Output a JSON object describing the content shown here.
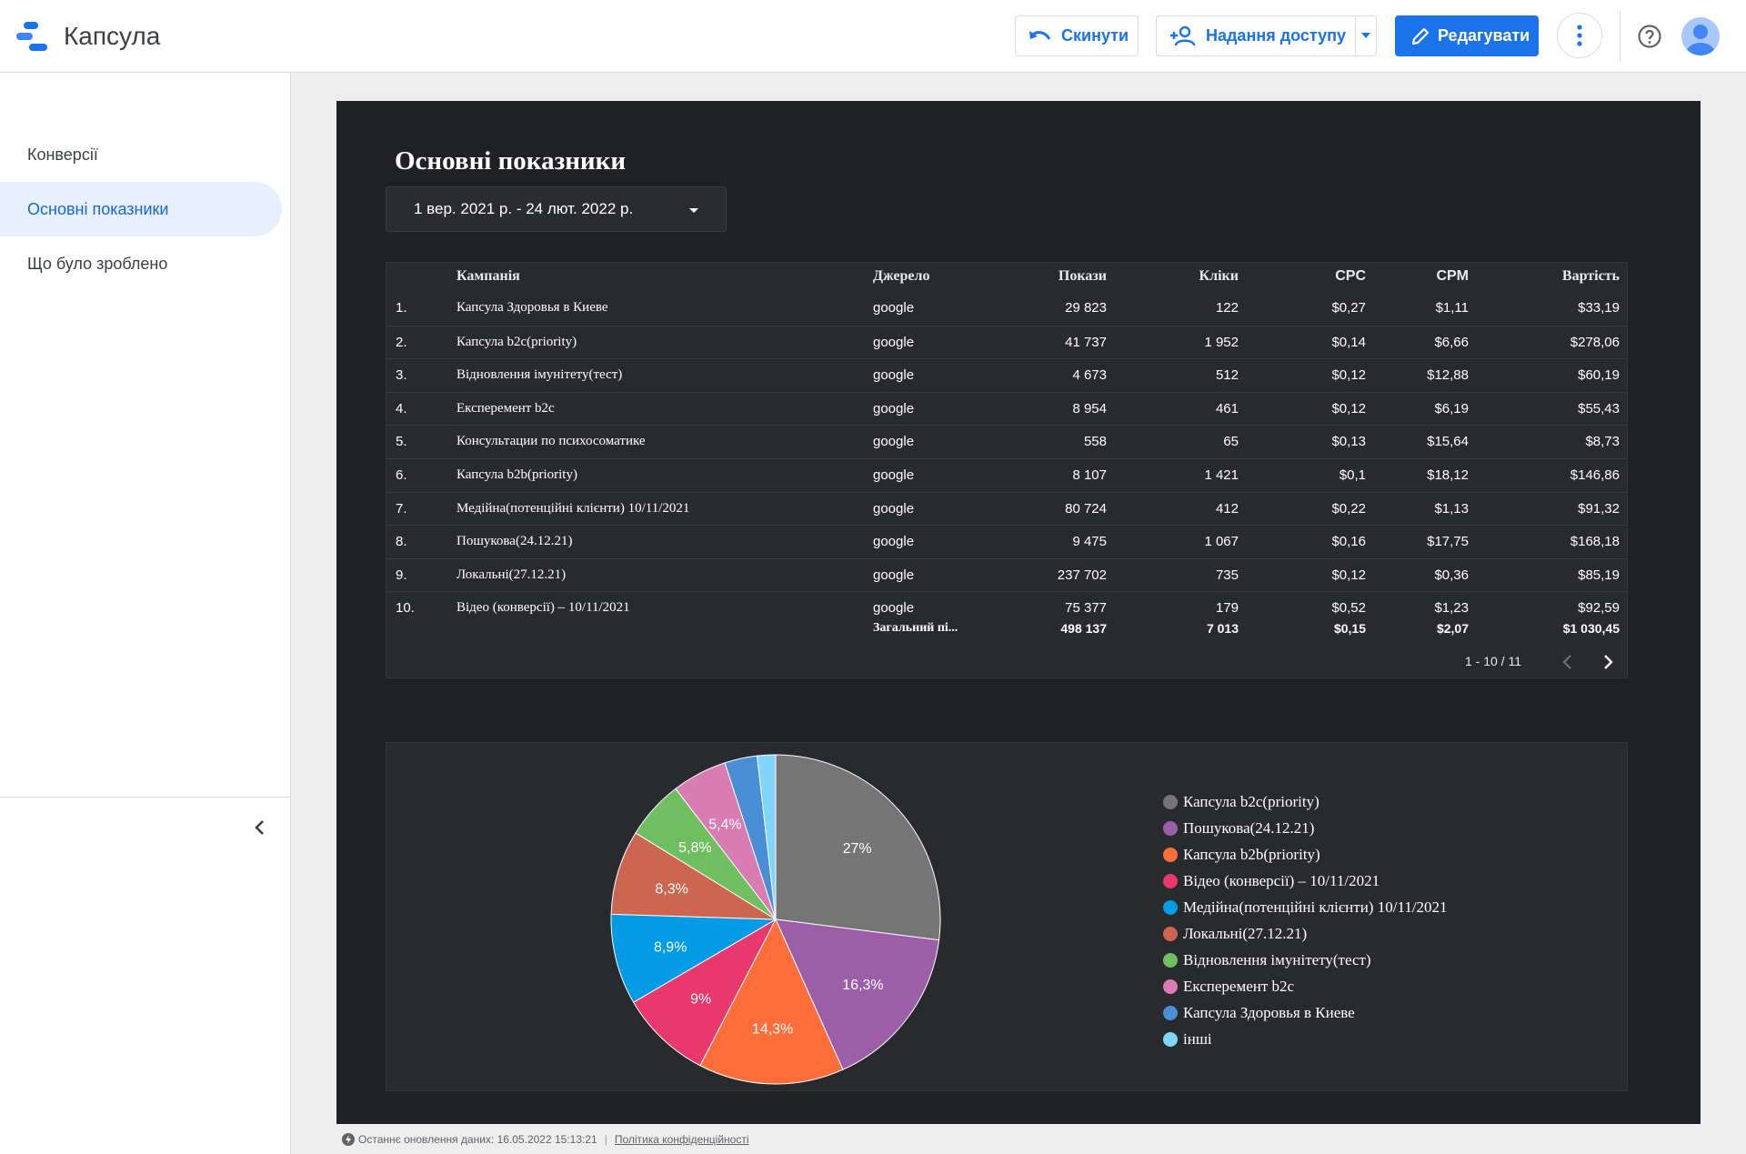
{
  "app": {
    "title": "Капсула"
  },
  "toolbar": {
    "reset_label": "Скинути",
    "share_label": "Надання доступу",
    "edit_label": "Редагувати"
  },
  "sidebar": {
    "items": [
      {
        "label": "Конверсії"
      },
      {
        "label": "Основні показники"
      },
      {
        "label": "Що було зроблено"
      }
    ]
  },
  "report": {
    "title": "Основні показники",
    "date_range": "1 вер. 2021 р. - 24 лют. 2022 р."
  },
  "table": {
    "headers": [
      "Кампанія",
      "Джерело",
      "Покази",
      "Кліки",
      "CPC",
      "CPM",
      "Вартість"
    ],
    "rows": [
      [
        "1.",
        "Капсула Здоровья в Киеве",
        "google",
        "29 823",
        "122",
        "$0,27",
        "$1,11",
        "$33,19"
      ],
      [
        "2.",
        "Капсула b2c(priority)",
        "google",
        "41 737",
        "1 952",
        "$0,14",
        "$6,66",
        "$278,06"
      ],
      [
        "3.",
        "Відновлення імунітету(тест)",
        "google",
        "4 673",
        "512",
        "$0,12",
        "$12,88",
        "$60,19"
      ],
      [
        "4.",
        "Експеремент b2c",
        "google",
        "8 954",
        "461",
        "$0,12",
        "$6,19",
        "$55,43"
      ],
      [
        "5.",
        "Консультации по психосоматике",
        "google",
        "558",
        "65",
        "$0,13",
        "$15,64",
        "$8,73"
      ],
      [
        "6.",
        "Капсула b2b(priority)",
        "google",
        "8 107",
        "1 421",
        "$0,1",
        "$18,12",
        "$146,86"
      ],
      [
        "7.",
        "Медійна(потенційні клієнти) 10/11/2021",
        "google",
        "80 724",
        "412",
        "$0,22",
        "$1,13",
        "$91,32"
      ],
      [
        "8.",
        "Пошукова(24.12.21)",
        "google",
        "9 475",
        "1 067",
        "$0,16",
        "$17,75",
        "$168,18"
      ],
      [
        "9.",
        "Локальні(27.12.21)",
        "google",
        "237 702",
        "735",
        "$0,12",
        "$0,36",
        "$85,19"
      ],
      [
        "10.",
        "Відео (конверсії) – 10/11/2021",
        "google",
        "75 377",
        "179",
        "$0,52",
        "$1,23",
        "$92,59"
      ]
    ],
    "total": [
      "Загальний пі...",
      "498 137",
      "7 013",
      "$0,15",
      "$2,07",
      "$1 030,45"
    ],
    "pager": "1 - 10 / 11"
  },
  "chart_data": {
    "type": "pie",
    "slices": [
      {
        "name": "Капсула b2c(priority)",
        "value": 27,
        "label": "27%",
        "color": "#757575"
      },
      {
        "name": "Пошукова(24.12.21)",
        "value": 16.3,
        "label": "16,3%",
        "color": "#9c5ea8"
      },
      {
        "name": "Капсула b2b(priority)",
        "value": 14.3,
        "label": "14,3%",
        "color": "#ff6d3a"
      },
      {
        "name": "Відео (конверсії) – 10/11/2021",
        "value": 9,
        "label": "9%",
        "color": "#e8386d"
      },
      {
        "name": "Медійна(потенційні клієнти) 10/11/2021",
        "value": 8.9,
        "label": "8,9%",
        "color": "#039be5"
      },
      {
        "name": "Локальні(27.12.21)",
        "value": 8.3,
        "label": "8,3%",
        "color": "#cc6650"
      },
      {
        "name": "Відновлення імунітету(тест)",
        "value": 5.8,
        "label": "5,8%",
        "color": "#6fbf60"
      },
      {
        "name": "Експеремент b2c",
        "value": 5.4,
        "label": "5,4%",
        "color": "#d97cb3"
      },
      {
        "name": "Капсула Здоровья в Киеве",
        "value": 3.2,
        "label": "",
        "color": "#4a8fd6"
      },
      {
        "name": "інші",
        "value": 1.8,
        "label": "",
        "color": "#81d4fa"
      }
    ]
  },
  "footer": {
    "updated": "Останнє оновлення даних: 16.05.2022 15:13:21",
    "privacy": "Політика конфіденційності"
  }
}
